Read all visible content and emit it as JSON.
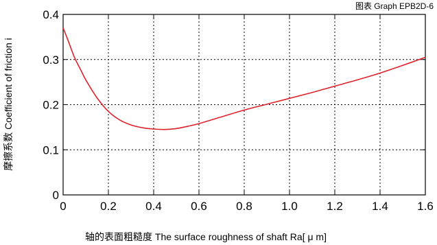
{
  "chart_data": {
    "type": "line",
    "title": "图表 Graph EPB2D-6",
    "xlabel": "轴的表面粗糙度 The surface roughness of shaft  Ra[ μ m]",
    "ylabel": "摩擦系数 Coefficient of friction i",
    "xlim": [
      0,
      1.6
    ],
    "ylim": [
      0,
      0.4
    ],
    "grid": true,
    "x_ticks": [
      "0",
      "0.2",
      "0.4",
      "0.6",
      "0.8",
      "1.0",
      "1.2",
      "1.4",
      "1.6"
    ],
    "y_ticks": [
      "0",
      "0.1",
      "0.2",
      "0.3",
      "0.4"
    ],
    "series": [
      {
        "color": "#e0202a",
        "x": [
          0,
          0.02,
          0.05,
          0.08,
          0.1,
          0.15,
          0.2,
          0.25,
          0.3,
          0.35,
          0.4,
          0.45,
          0.5,
          0.55,
          0.6,
          0.7,
          0.8,
          0.9,
          1.0,
          1.1,
          1.2,
          1.3,
          1.4,
          1.5,
          1.6
        ],
        "y": [
          0.37,
          0.345,
          0.305,
          0.275,
          0.255,
          0.215,
          0.185,
          0.166,
          0.155,
          0.149,
          0.146,
          0.145,
          0.147,
          0.152,
          0.158,
          0.173,
          0.188,
          0.201,
          0.214,
          0.227,
          0.241,
          0.255,
          0.27,
          0.287,
          0.305
        ]
      }
    ]
  }
}
